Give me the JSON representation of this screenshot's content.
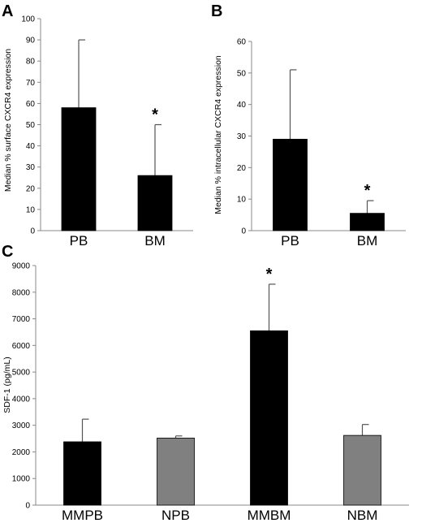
{
  "chart_data": [
    {
      "panel": "A",
      "type": "bar",
      "categories": [
        "PB",
        "BM"
      ],
      "values": [
        58,
        26
      ],
      "error_upper": [
        90,
        50
      ],
      "significance": [
        "",
        "*"
      ],
      "bar_colors": [
        "#000000",
        "#000000"
      ],
      "xlabel": "",
      "ylabel": "Median % surface CXCR4 expression",
      "ylim": [
        0,
        100
      ],
      "yticks": [
        0,
        10,
        20,
        30,
        40,
        50,
        60,
        70,
        80,
        90,
        100
      ],
      "grid": false
    },
    {
      "panel": "B",
      "type": "bar",
      "categories": [
        "PB",
        "BM"
      ],
      "values": [
        29,
        5.5
      ],
      "error_upper": [
        51,
        9.5
      ],
      "significance": [
        "",
        "*"
      ],
      "bar_colors": [
        "#000000",
        "#000000"
      ],
      "xlabel": "",
      "ylabel": "Median % intracellular CXCR4 expression",
      "ylim": [
        0,
        60
      ],
      "yticks": [
        0,
        10,
        20,
        30,
        40,
        50,
        60
      ],
      "grid": false
    },
    {
      "panel": "C",
      "type": "bar",
      "categories": [
        "MMPB",
        "NPB",
        "MMBM",
        "NBM"
      ],
      "values": [
        2380,
        2520,
        6550,
        2620
      ],
      "error_upper": [
        3230,
        2600,
        8300,
        3030
      ],
      "significance": [
        "",
        "",
        "*",
        ""
      ],
      "bar_colors": [
        "#000000",
        "#808080",
        "#000000",
        "#808080"
      ],
      "xlabel": "",
      "ylabel": "SDF-1 (pg/mL)",
      "ylim": [
        0,
        9000
      ],
      "yticks": [
        0,
        1000,
        2000,
        3000,
        4000,
        5000,
        6000,
        7000,
        8000,
        9000
      ],
      "grid": false
    }
  ]
}
